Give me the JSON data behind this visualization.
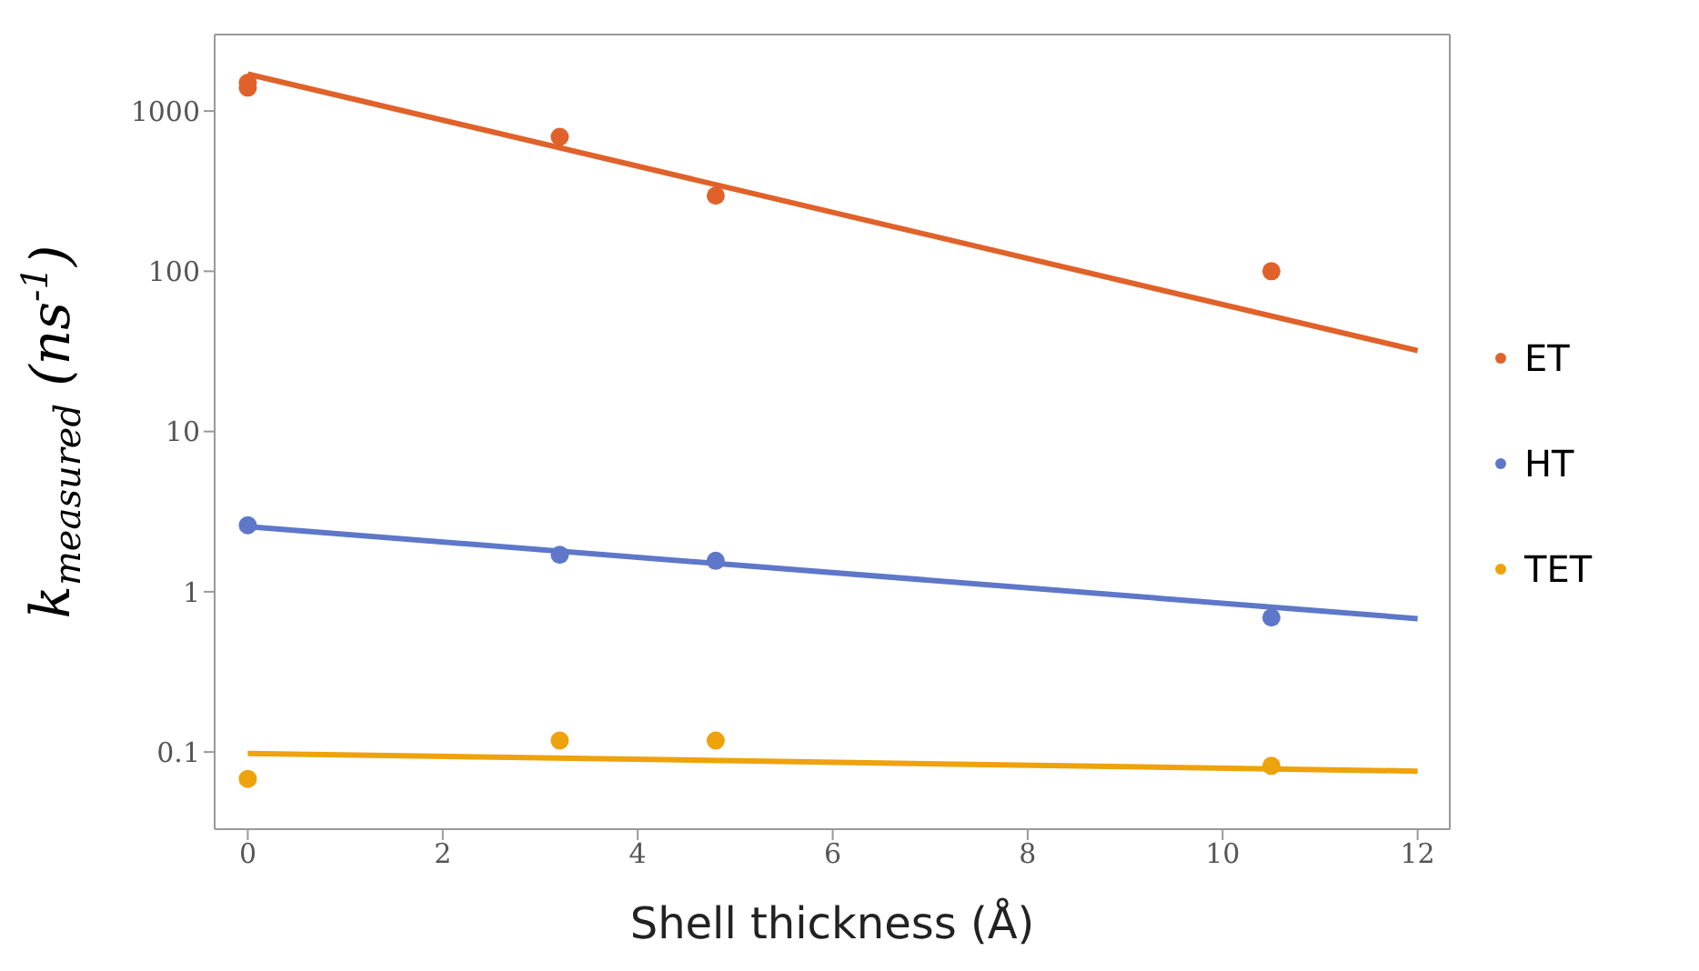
{
  "chart_data": {
    "type": "scatter",
    "xlabel": "Shell thickness (Å)",
    "ylabel": "k$_{measured}$ (ns$^{-1}$)",
    "log": "y",
    "xlim": [
      -0.34,
      12.33
    ],
    "xticks": [
      0,
      2,
      4,
      6,
      8,
      10,
      12
    ],
    "ylim": [
      0.033,
      3000
    ],
    "yticks": [
      0.1,
      1,
      10,
      100,
      1000
    ],
    "grid": false,
    "legend": "right",
    "marker": "circle",
    "series": [
      {
        "name": "ET",
        "color": "#e0622a",
        "x": [
          0,
          0,
          3.2,
          4.8,
          10.5
        ],
        "values": [
          1500,
          1400,
          690,
          296,
          100
        ]
      },
      {
        "name": "HT",
        "color": "#5e77c9",
        "x": [
          0,
          3.2,
          4.8,
          10.5
        ],
        "values": [
          2.6,
          1.7,
          1.56,
          0.69
        ]
      },
      {
        "name": "TET",
        "color": "#eea20c",
        "x": [
          0,
          3.2,
          4.8,
          10.5
        ],
        "values": [
          0.068,
          0.118,
          0.118,
          0.082
        ]
      },
      {
        "type": "line",
        "marker": "none",
        "color": "#e0622a",
        "x": [
          0,
          12
        ],
        "values": [
          1700,
          32
        ]
      },
      {
        "type": "line",
        "marker": "none",
        "color": "#5e77c9",
        "x": [
          0,
          12
        ],
        "values": [
          2.55,
          0.68
        ]
      },
      {
        "type": "line",
        "marker": "none",
        "color": "#eea20c",
        "x": [
          0,
          12
        ],
        "values": [
          0.098,
          0.076
        ]
      }
    ]
  }
}
